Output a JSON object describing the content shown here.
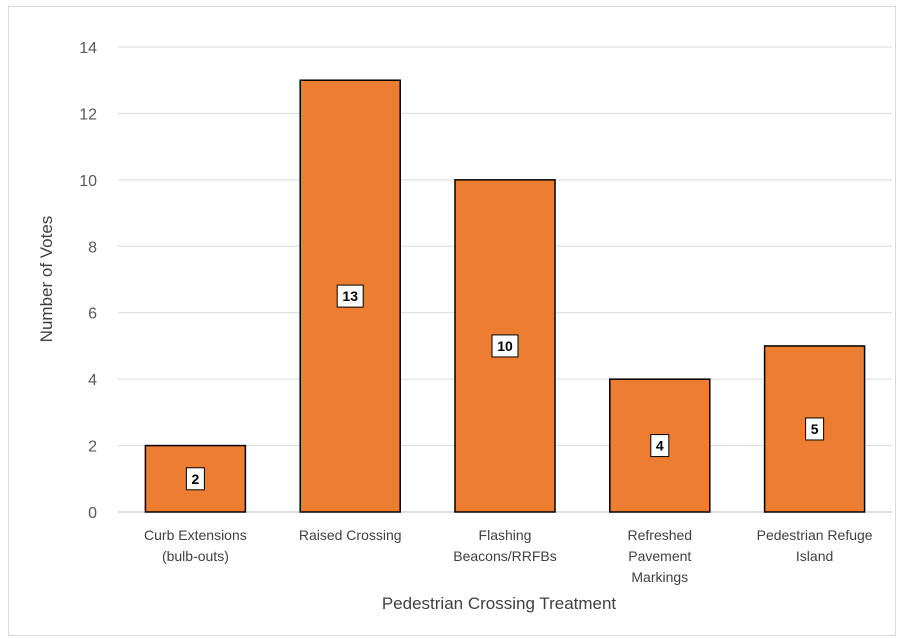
{
  "chart_data": {
    "type": "bar",
    "categories": [
      [
        "Curb Extensions",
        "(bulb-outs)"
      ],
      [
        "Raised Crossing"
      ],
      [
        "Flashing",
        "Beacons/RRFBs"
      ],
      [
        "Refreshed",
        "Pavement",
        "Markings"
      ],
      [
        "Pedestrian Refuge",
        "Island"
      ]
    ],
    "values": [
      2,
      13,
      10,
      4,
      5
    ],
    "data_labels": [
      "2",
      "13",
      "10",
      "4",
      "5"
    ],
    "xlabel": "Pedestrian Crossing Treatment",
    "ylabel": "Number of Votes",
    "ylim": [
      0,
      14
    ],
    "yticks": [
      "0",
      "2",
      "4",
      "6",
      "8",
      "10",
      "12",
      "14"
    ],
    "grid": true,
    "legend": "none",
    "colors": {
      "bar": "#ED7D31",
      "bar_edge": "#000000",
      "grid": "#d9d9d9",
      "axis": "#bfbfbf"
    }
  }
}
